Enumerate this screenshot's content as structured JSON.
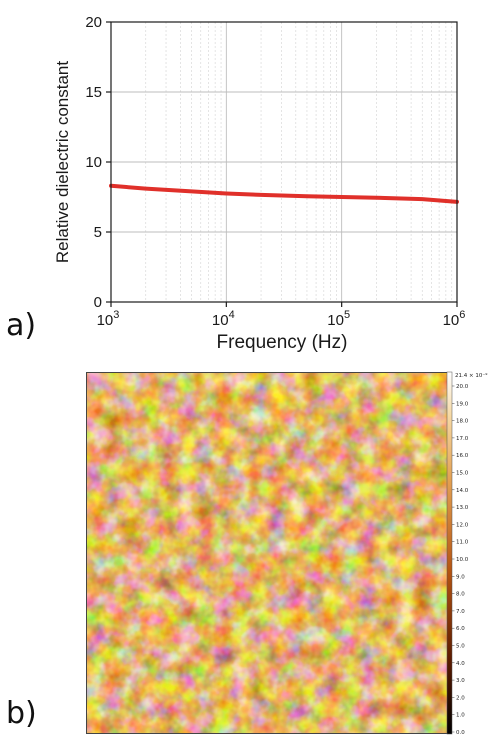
{
  "panel_labels": {
    "a": "a)",
    "b": "b)"
  },
  "colors": {
    "series": "#e0302a",
    "axis": "#1a1a1a",
    "grid_major": "#bdbdbd",
    "grid_minor": "#d9d9d9",
    "afm_dark": "#5a1e00",
    "afm_mid": "#c86a1e",
    "afm_light": "#fbe7bf"
  },
  "chart_data": {
    "type": "line",
    "title": "",
    "xlabel": "Frequency (Hz)",
    "ylabel": "Relative dielectric constant",
    "xscale": "log",
    "xlim": [
      1000,
      1000000
    ],
    "ylim": [
      0,
      20
    ],
    "xticks": [
      {
        "value": 1000,
        "base": "10",
        "exp": "3"
      },
      {
        "value": 10000,
        "base": "10",
        "exp": "4"
      },
      {
        "value": 100000,
        "base": "10",
        "exp": "5"
      },
      {
        "value": 1000000,
        "base": "10",
        "exp": "6"
      }
    ],
    "yticks": [
      0,
      5,
      10,
      15,
      20
    ],
    "yticklabels": [
      "0",
      "5",
      "10",
      "15",
      "20"
    ],
    "grid": true,
    "series": [
      {
        "x": [
          1000,
          2000,
          5000,
          10000,
          20000,
          50000,
          100000,
          200000,
          500000,
          1000000
        ],
        "y": [
          8.3,
          8.1,
          7.9,
          7.75,
          7.65,
          7.55,
          7.5,
          7.45,
          7.35,
          7.15
        ]
      }
    ]
  },
  "afm_scale": {
    "top_label": "21.4 × 10⁻⁹",
    "ticks": [
      "20.0",
      "19.0",
      "18.0",
      "17.0",
      "16.0",
      "15.0",
      "14.0",
      "13.0",
      "12.0",
      "11.0",
      "10.0",
      "9.0",
      "8.0",
      "7.0",
      "6.0",
      "5.0",
      "4.0",
      "3.0",
      "2.0",
      "1.0",
      "0.0"
    ]
  }
}
